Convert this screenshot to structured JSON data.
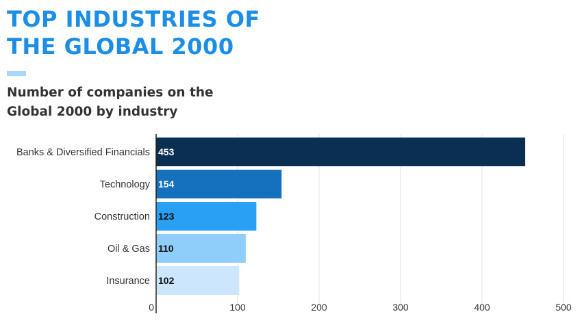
{
  "header": {
    "title": "TOP INDUSTRIES OF\nTHE GLOBAL 2000",
    "subtitle": "Number of companies on the\nGlobal 2000 by industry"
  },
  "colors": {
    "title": "#1c8ee6",
    "accent": "#a9d6fb",
    "subtitle": "#333333",
    "grid": "#e2e2e2",
    "axis": "#222222"
  },
  "chart_data": {
    "type": "bar",
    "orientation": "horizontal",
    "title": "TOP INDUSTRIES OF THE GLOBAL 2000",
    "subtitle": "Number of companies on the Global 2000 by industry",
    "categories": [
      "Banks & Diversified Financials",
      "Technology",
      "Construction",
      "Oil & Gas",
      "Insurance"
    ],
    "values": [
      453,
      154,
      123,
      110,
      102
    ],
    "data_labels": [
      "453",
      "154",
      "123",
      "110",
      "102"
    ],
    "bar_colors": [
      "#0a2f52",
      "#1570bd",
      "#2aa0f4",
      "#8fcdfa",
      "#cce7fd"
    ],
    "label_colors": [
      "#ffffff",
      "#ffffff",
      "#111111",
      "#111111",
      "#111111"
    ],
    "xlim": [
      0,
      500
    ],
    "xticks": [
      0,
      100,
      200,
      300,
      400,
      500
    ],
    "grid": true,
    "legend": "none"
  }
}
